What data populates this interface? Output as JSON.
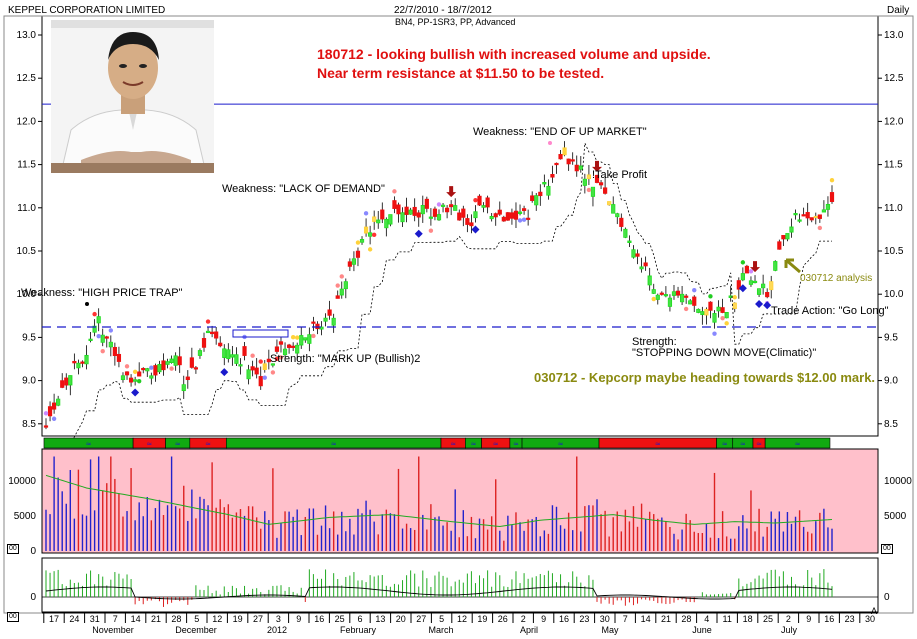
{
  "header": {
    "company": "KEPPEL CORPORATION LIMITED",
    "date_range": "22/7/2010 - 18/7/2012",
    "indicators": "BN4, PP-1SR3, PP, Advanced",
    "period": "Daily"
  },
  "annotations": {
    "headline_line1": "180712 - looking bullish with increased volume and upside.",
    "headline_line2": "Near term resistance at $11.50 to be tested.",
    "weakness_high_price_trap": "Weakness: \"HIGH PRICE TRAP\"",
    "weakness_lack_of_demand": "Weakness: \"LACK OF DEMAND\"",
    "weakness_end_of_up_market": "Weakness: \"END OF UP MARKET\"",
    "take_profit": "!Take Profit",
    "strength_mark_up": "Strength: \"MARK UP (Bullish)2",
    "strength_stopping_down_l1": "Strength:",
    "strength_stopping_down_l2": "\"STOPPING DOWN MOVE(Climatic)\"",
    "analysis_030712": "030712 analysis",
    "trade_action": "Trade Action: \"Go Long\"",
    "forecast_030712": "030712 - Kepcorp maybe heading towards $12.00 mark."
  },
  "volume_labels": {
    "left_box": "00",
    "right_box": "00"
  },
  "indicator_labels": {
    "left_box": "00",
    "right_end": "A"
  },
  "colors": {
    "bull_candle": "#22dd22",
    "bear_candle": "#ee1111",
    "volume_bg": "#ffc0cb",
    "volume_up": "#2222cc",
    "volume_down": "#dd2222",
    "volume_ma": "#22aa22",
    "resistance_line": "#1a1acc",
    "support_dashed": "#1a1acc",
    "headline_text": "#e01010",
    "forecast_text": "#8a8a10",
    "trend_bar_green": "#11aa11",
    "trend_bar_red": "#ee1111"
  },
  "chart_data": {
    "type": "candlestick",
    "y_ticks": [
      "13.0",
      "12.5",
      "12.0",
      "11.5",
      "11.0",
      "10.5",
      "10.0",
      "9.5",
      "9.0",
      "8.5"
    ],
    "ylim": [
      8.25,
      13.15
    ],
    "horizontal_lines": {
      "resistance": 12.2,
      "support": 9.62
    },
    "volume_ticks": [
      "10000",
      "5000",
      "0"
    ],
    "volume_ylim": [
      0,
      14000
    ],
    "indicator_ticks": [
      "0"
    ],
    "x_day_ticks": [
      "17",
      "24",
      "31",
      "7",
      "14",
      "21",
      "28",
      "5",
      "12",
      "19",
      "27",
      "3",
      "9",
      "16",
      "25",
      "6",
      "13",
      "20",
      "27",
      "5",
      "12",
      "19",
      "26",
      "2",
      "9",
      "16",
      "23",
      "30",
      "7",
      "14",
      "21",
      "28",
      "4",
      "11",
      "18",
      "25",
      "2",
      "9",
      "16",
      "23",
      "30"
    ],
    "x_month_labels": [
      "November",
      "December",
      "2012",
      "February",
      "March",
      "April",
      "May",
      "June",
      "July"
    ],
    "n_bars": 195,
    "price_path": [
      [
        0,
        8.55
      ],
      [
        6,
        9.1
      ],
      [
        11,
        9.4
      ],
      [
        13,
        9.7
      ],
      [
        17,
        9.3
      ],
      [
        19,
        9.05
      ],
      [
        27,
        9.1
      ],
      [
        32,
        9.3
      ],
      [
        34,
        8.95
      ],
      [
        38,
        9.3
      ],
      [
        41,
        9.6
      ],
      [
        45,
        9.35
      ],
      [
        50,
        9.2
      ],
      [
        53,
        8.95
      ],
      [
        57,
        9.35
      ],
      [
        61,
        9.45
      ],
      [
        64,
        9.55
      ],
      [
        71,
        9.75
      ],
      [
        74,
        10.2
      ],
      [
        81,
        10.85
      ],
      [
        87,
        11.0
      ],
      [
        92,
        10.95
      ],
      [
        101,
        10.95
      ],
      [
        104,
        10.8
      ],
      [
        107,
        11.0
      ],
      [
        114,
        10.9
      ],
      [
        119,
        10.95
      ],
      [
        124,
        11.3
      ],
      [
        127,
        11.55
      ],
      [
        130,
        11.55
      ],
      [
        134,
        11.35
      ],
      [
        139,
        11.1
      ],
      [
        143,
        10.75
      ],
      [
        147,
        10.35
      ],
      [
        150,
        10.1
      ],
      [
        153,
        10.0
      ],
      [
        158,
        9.9
      ],
      [
        161,
        9.8
      ],
      [
        163,
        9.75
      ],
      [
        167,
        9.8
      ],
      [
        170,
        9.95
      ],
      [
        172,
        10.3
      ],
      [
        175,
        10.2
      ],
      [
        178,
        10.0
      ],
      [
        181,
        10.6
      ],
      [
        184,
        10.85
      ],
      [
        190,
        10.9
      ],
      [
        194,
        11.05
      ]
    ],
    "volume_ma_path": [
      [
        0,
        10800
      ],
      [
        10,
        9000
      ],
      [
        25,
        7500
      ],
      [
        45,
        5200
      ],
      [
        55,
        3800
      ],
      [
        70,
        4800
      ],
      [
        85,
        5200
      ],
      [
        100,
        4200
      ],
      [
        112,
        3500
      ],
      [
        122,
        4400
      ],
      [
        140,
        5200
      ],
      [
        150,
        4400
      ],
      [
        160,
        3800
      ],
      [
        170,
        4200
      ],
      [
        180,
        4000
      ],
      [
        194,
        4500
      ]
    ],
    "trend_segments": [
      {
        "start": 0,
        "end": 22,
        "color": "green"
      },
      {
        "start": 22,
        "end": 30,
        "color": "red"
      },
      {
        "start": 30,
        "end": 36,
        "color": "green"
      },
      {
        "start": 36,
        "end": 45,
        "color": "red"
      },
      {
        "start": 45,
        "end": 98,
        "color": "green"
      },
      {
        "start": 98,
        "end": 104,
        "color": "red"
      },
      {
        "start": 104,
        "end": 108,
        "color": "green"
      },
      {
        "start": 108,
        "end": 115,
        "color": "red"
      },
      {
        "start": 115,
        "end": 118,
        "color": "green"
      },
      {
        "start": 118,
        "end": 137,
        "color": "green"
      },
      {
        "start": 137,
        "end": 166,
        "color": "red"
      },
      {
        "start": 166,
        "end": 170,
        "color": "green"
      },
      {
        "start": 170,
        "end": 175,
        "color": "green"
      },
      {
        "start": 175,
        "end": 178,
        "color": "red"
      },
      {
        "start": 178,
        "end": 194,
        "color": "green"
      }
    ],
    "grid": false,
    "legend": "none"
  }
}
